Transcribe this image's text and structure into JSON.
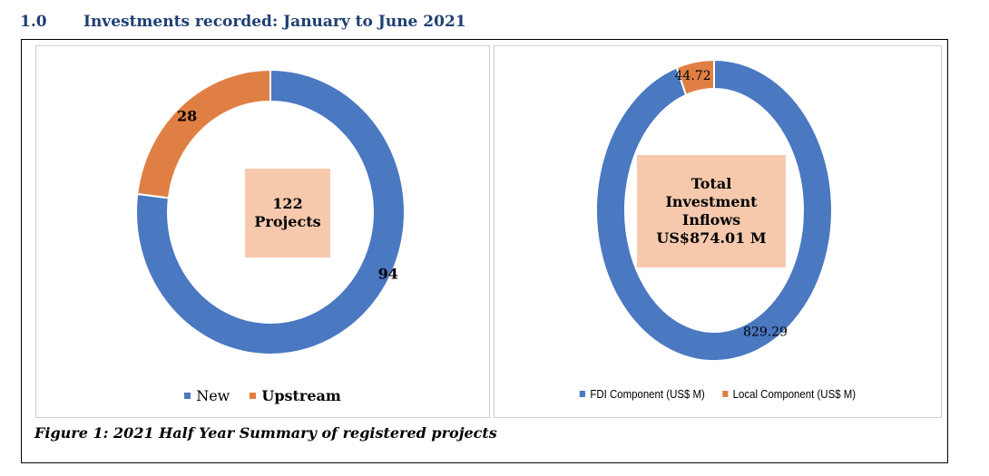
{
  "heading": {
    "number": "1.0",
    "title": "Investments recorded: January to June 2021"
  },
  "caption": "Figure 1: 2021 Half Year Summary of registered projects",
  "colors": {
    "blue": "#4a78c1",
    "orange": "#e07f44",
    "center_box": "#f6c9ad"
  },
  "chart_data": [
    {
      "type": "pie",
      "variant": "donut",
      "categories": [
        "New",
        "Upstream"
      ],
      "values": [
        94,
        28
      ],
      "data_labels": [
        "94",
        "28"
      ],
      "center_text": [
        "122",
        "Projects"
      ],
      "legend": [
        "New",
        "Upstream"
      ],
      "legend_placement": "bottom"
    },
    {
      "type": "pie",
      "variant": "donut",
      "categories": [
        "FDI Component (US$ M)",
        "Local Component (US$ M)"
      ],
      "values": [
        829.29,
        44.72
      ],
      "data_labels": [
        "829.29",
        "44.72"
      ],
      "center_text": [
        "Total",
        "Investment",
        "Inflows",
        "US$874.01 M"
      ],
      "legend": [
        "FDI Component (US$ M)",
        "Local Component (US$ M)"
      ],
      "legend_placement": "bottom"
    }
  ]
}
